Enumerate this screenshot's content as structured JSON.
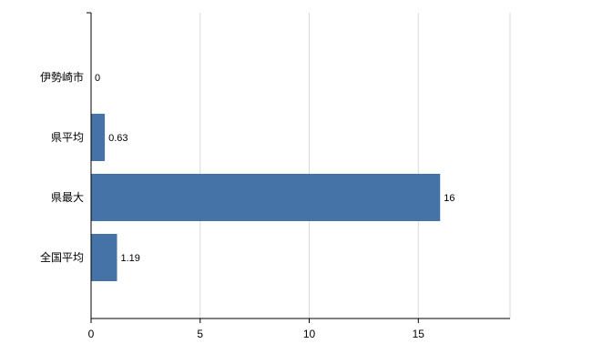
{
  "chart_data": {
    "type": "bar",
    "orientation": "horizontal",
    "title": "",
    "xlabel": "",
    "ylabel": "",
    "categories": [
      "伊勢崎市",
      "県平均",
      "県最大",
      "全国平均"
    ],
    "values": [
      0,
      0.63,
      16,
      1.19
    ],
    "value_labels": [
      "0",
      "0.63",
      "16",
      "1.19"
    ],
    "xlim": [
      0,
      19.2
    ],
    "xticks": [
      0,
      5,
      10,
      15
    ],
    "grid": true,
    "legend": "none",
    "bar_color": "#4572a7",
    "axis_color": "#000000",
    "grid_color": "#d9d9d9",
    "label_color": "#000000",
    "background": "#ffffff"
  }
}
